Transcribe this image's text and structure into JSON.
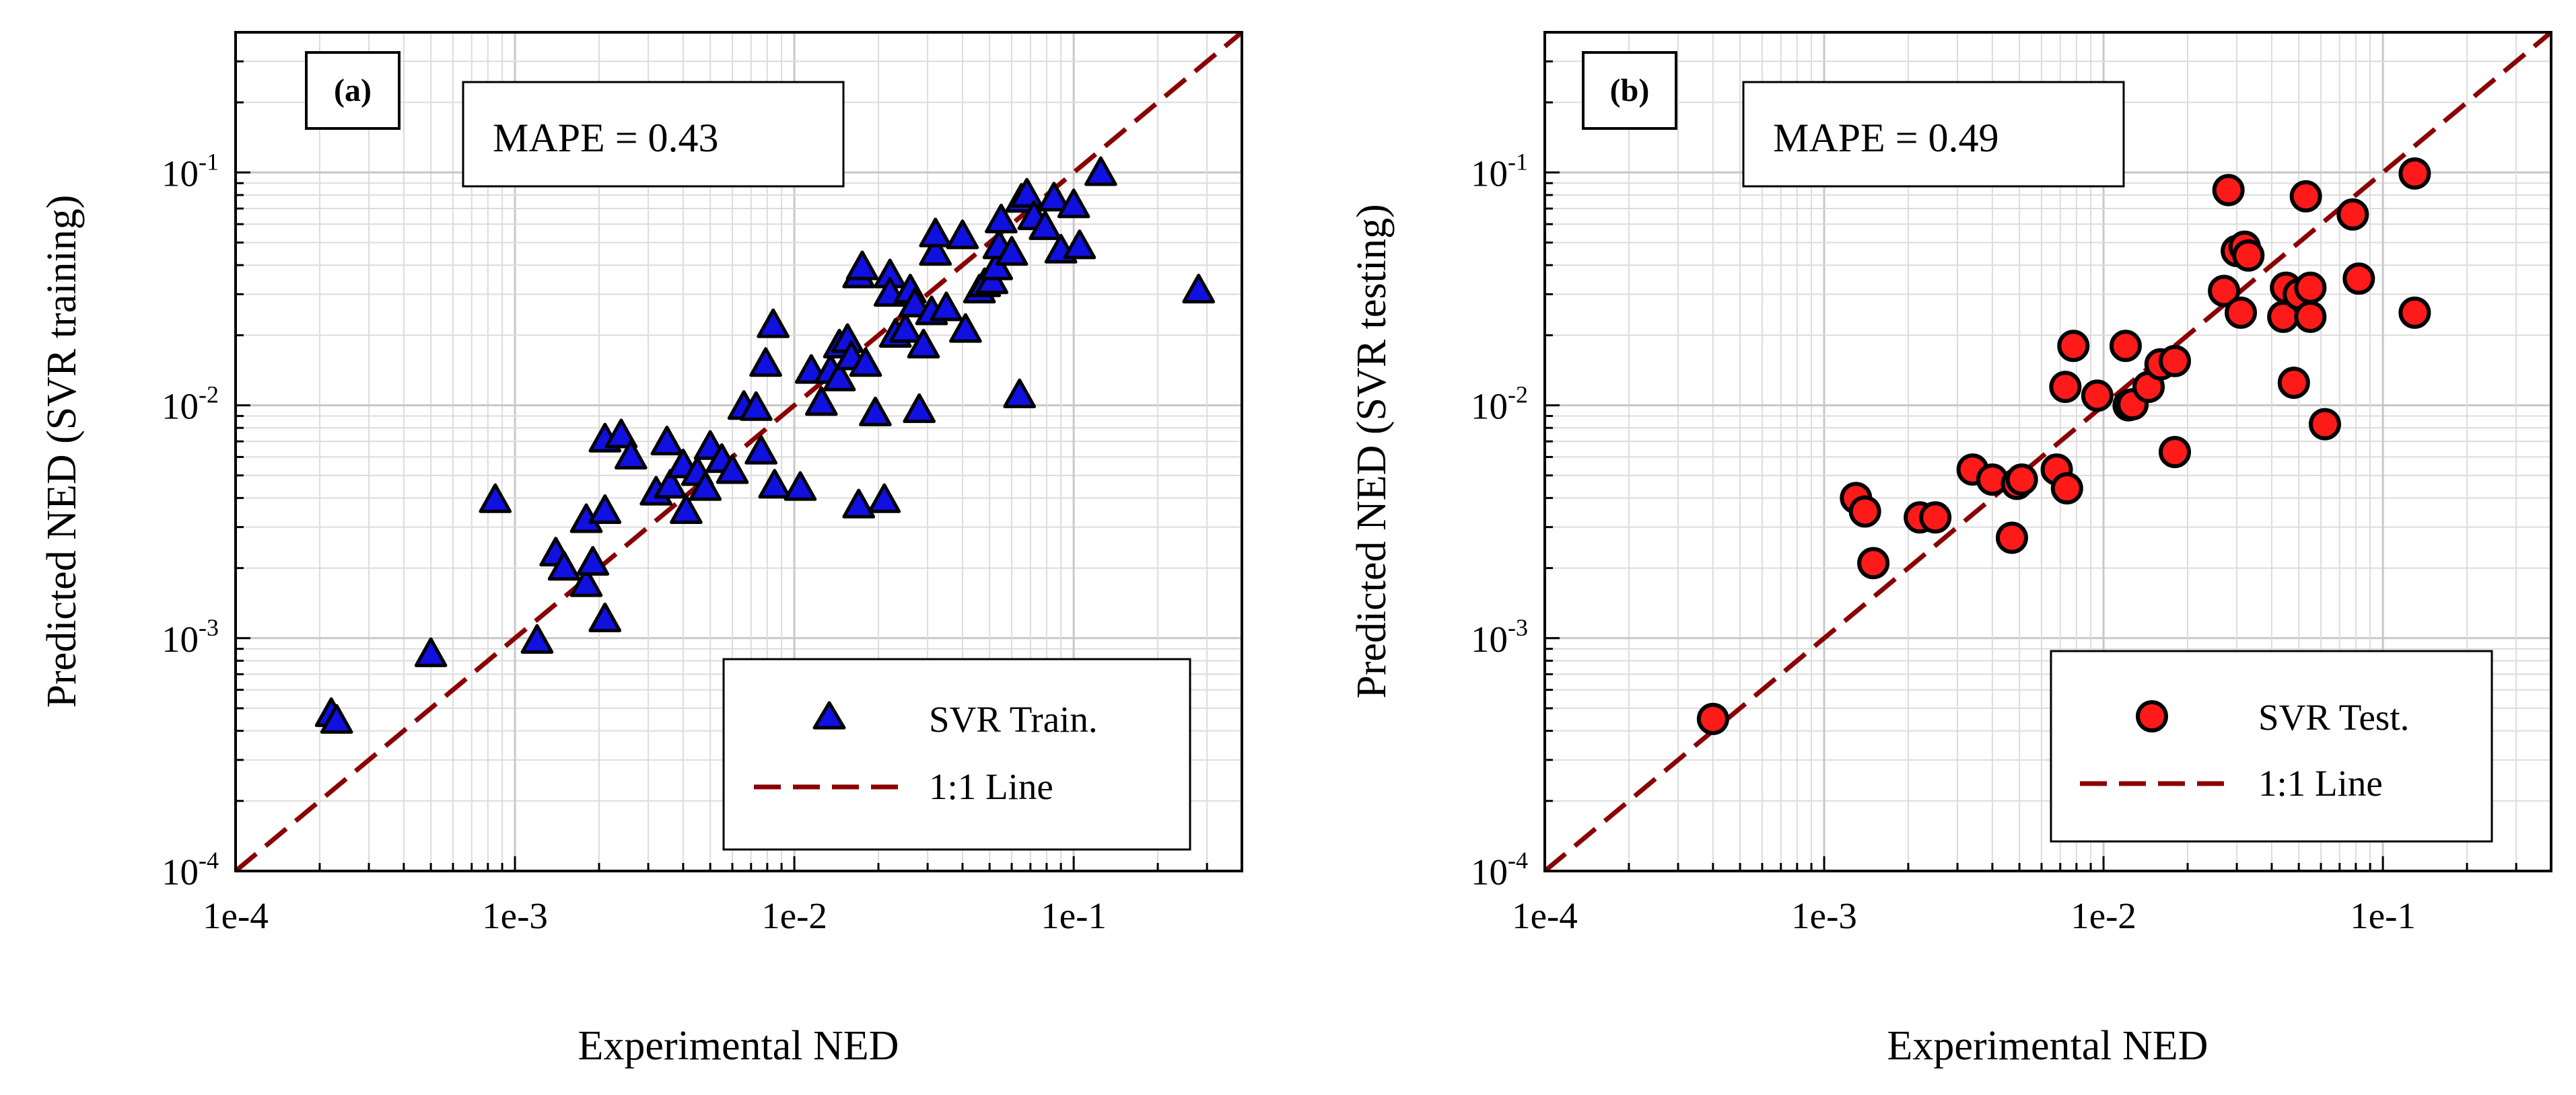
{
  "chart_data": [
    {
      "type": "scatter",
      "panel_label": "(a)",
      "metric_label": "MAPE = 0.43",
      "xlabel": "Experimental NED",
      "ylabel": "Predicted NED (SVR training)",
      "x_scale": "log",
      "y_scale": "log",
      "xlim": [
        0.0001,
        0.4
      ],
      "ylim": [
        0.0001,
        0.4
      ],
      "x_ticks": [
        {
          "value": 0.0001,
          "label": "1e-4"
        },
        {
          "value": 0.001,
          "label": "1e-3"
        },
        {
          "value": 0.01,
          "label": "1e-2"
        },
        {
          "value": 0.1,
          "label": "1e-1"
        }
      ],
      "y_ticks": [
        {
          "value": 0.0001,
          "base": "10",
          "exp": "-4"
        },
        {
          "value": 0.001,
          "base": "10",
          "exp": "-3"
        },
        {
          "value": 0.01,
          "base": "10",
          "exp": "-2"
        },
        {
          "value": 0.1,
          "base": "10",
          "exp": "-1"
        }
      ],
      "grid": true,
      "legend_position": "bottom-right",
      "legend": [
        {
          "label": "SVR Train.",
          "marker": "triangle"
        },
        {
          "label": "1:1 Line",
          "marker": "dashed-line"
        }
      ],
      "colors": {
        "marker_fill": "#1010e0",
        "marker_edge": "#000000",
        "ref_line": "#8b0000"
      },
      "series": [
        {
          "name": "SVR Train.",
          "marker": "triangle",
          "points": [
            [
              0.00022,
              0.00047
            ],
            [
              0.00023,
              0.00044
            ],
            [
              0.0005,
              0.00085
            ],
            [
              0.00085,
              0.0039
            ],
            [
              0.0012,
              0.00097
            ],
            [
              0.0014,
              0.0023
            ],
            [
              0.0015,
              0.002
            ],
            [
              0.0018,
              0.0017
            ],
            [
              0.0018,
              0.0032
            ],
            [
              0.0019,
              0.0021
            ],
            [
              0.0021,
              0.0035
            ],
            [
              0.0021,
              0.0012
            ],
            [
              0.0021,
              0.0071
            ],
            [
              0.0024,
              0.0074
            ],
            [
              0.0026,
              0.006
            ],
            [
              0.0032,
              0.0042
            ],
            [
              0.0035,
              0.0069
            ],
            [
              0.0036,
              0.0045
            ],
            [
              0.004,
              0.0055
            ],
            [
              0.0041,
              0.0035
            ],
            [
              0.0045,
              0.0051
            ],
            [
              0.0048,
              0.0044
            ],
            [
              0.005,
              0.0066
            ],
            [
              0.0055,
              0.0058
            ],
            [
              0.006,
              0.0052
            ],
            [
              0.0066,
              0.0098
            ],
            [
              0.0073,
              0.0097
            ],
            [
              0.0076,
              0.0063
            ],
            [
              0.0079,
              0.015
            ],
            [
              0.0084,
              0.022
            ],
            [
              0.0085,
              0.0045
            ],
            [
              0.0105,
              0.0044
            ],
            [
              0.0115,
              0.014
            ],
            [
              0.0125,
              0.0102
            ],
            [
              0.0135,
              0.014
            ],
            [
              0.0145,
              0.018
            ],
            [
              0.0145,
              0.013
            ],
            [
              0.0155,
              0.019
            ],
            [
              0.016,
              0.016
            ],
            [
              0.017,
              0.0037
            ],
            [
              0.017,
              0.036
            ],
            [
              0.0175,
              0.039
            ],
            [
              0.018,
              0.015
            ],
            [
              0.0195,
              0.0092
            ],
            [
              0.021,
              0.0039
            ],
            [
              0.022,
              0.036
            ],
            [
              0.022,
              0.03
            ],
            [
              0.023,
              0.02
            ],
            [
              0.025,
              0.021
            ],
            [
              0.026,
              0.031
            ],
            [
              0.027,
              0.027
            ],
            [
              0.028,
              0.0095
            ],
            [
              0.029,
              0.018
            ],
            [
              0.031,
              0.025
            ],
            [
              0.032,
              0.045
            ],
            [
              0.032,
              0.054
            ],
            [
              0.035,
              0.026
            ],
            [
              0.04,
              0.053
            ],
            [
              0.041,
              0.021
            ],
            [
              0.046,
              0.031
            ],
            [
              0.048,
              0.033
            ],
            [
              0.051,
              0.034
            ],
            [
              0.053,
              0.039
            ],
            [
              0.054,
              0.048
            ],
            [
              0.055,
              0.062
            ],
            [
              0.06,
              0.045
            ],
            [
              0.064,
              0.011
            ],
            [
              0.065,
              0.076
            ],
            [
              0.068,
              0.08
            ],
            [
              0.072,
              0.064
            ],
            [
              0.079,
              0.058
            ],
            [
              0.085,
              0.077
            ],
            [
              0.09,
              0.046
            ],
            [
              0.1,
              0.072
            ],
            [
              0.105,
              0.048
            ],
            [
              0.125,
              0.099
            ],
            [
              0.28,
              0.031
            ]
          ]
        },
        {
          "name": "1:1 Line",
          "type": "line",
          "style": "dashed",
          "x": [
            0.0001,
            0.4
          ],
          "y": [
            0.0001,
            0.4
          ]
        }
      ]
    },
    {
      "type": "scatter",
      "panel_label": "(b)",
      "metric_label": "MAPE = 0.49",
      "xlabel": "Experimental NED",
      "ylabel": "Predicted NED (SVR testing)",
      "x_scale": "log",
      "y_scale": "log",
      "xlim": [
        0.0001,
        0.4
      ],
      "ylim": [
        0.0001,
        0.4
      ],
      "x_ticks": [
        {
          "value": 0.0001,
          "label": "1e-4"
        },
        {
          "value": 0.001,
          "label": "1e-3"
        },
        {
          "value": 0.01,
          "label": "1e-2"
        },
        {
          "value": 0.1,
          "label": "1e-1"
        }
      ],
      "y_ticks": [
        {
          "value": 0.0001,
          "base": "10",
          "exp": "-4"
        },
        {
          "value": 0.001,
          "base": "10",
          "exp": "-3"
        },
        {
          "value": 0.01,
          "base": "10",
          "exp": "-2"
        },
        {
          "value": 0.1,
          "base": "10",
          "exp": "-1"
        }
      ],
      "grid": true,
      "legend_position": "bottom-right",
      "legend": [
        {
          "label": "SVR Test.",
          "marker": "circle"
        },
        {
          "label": "1:1 Line",
          "marker": "dashed-line"
        }
      ],
      "colors": {
        "marker_fill": "#ff1a1a",
        "marker_edge": "#000000",
        "ref_line": "#8b0000"
      },
      "series": [
        {
          "name": "SVR Test.",
          "marker": "circle",
          "points": [
            [
              0.0004,
              0.00045
            ],
            [
              0.0013,
              0.004
            ],
            [
              0.0014,
              0.0035
            ],
            [
              0.0015,
              0.0021
            ],
            [
              0.0022,
              0.0033
            ],
            [
              0.0025,
              0.0033
            ],
            [
              0.0034,
              0.0053
            ],
            [
              0.004,
              0.0048
            ],
            [
              0.0047,
              0.0027
            ],
            [
              0.0049,
              0.0046
            ],
            [
              0.0051,
              0.0048
            ],
            [
              0.0068,
              0.0053
            ],
            [
              0.0073,
              0.012
            ],
            [
              0.0074,
              0.0044
            ],
            [
              0.0078,
              0.018
            ],
            [
              0.0095,
              0.011
            ],
            [
              0.012,
              0.018
            ],
            [
              0.0123,
              0.01
            ],
            [
              0.0127,
              0.0101
            ],
            [
              0.0145,
              0.012
            ],
            [
              0.016,
              0.015
            ],
            [
              0.018,
              0.0063
            ],
            [
              0.018,
              0.0155
            ],
            [
              0.027,
              0.031
            ],
            [
              0.028,
              0.084
            ],
            [
              0.03,
              0.046
            ],
            [
              0.031,
              0.025
            ],
            [
              0.032,
              0.048
            ],
            [
              0.033,
              0.044
            ],
            [
              0.044,
              0.024
            ],
            [
              0.045,
              0.032
            ],
            [
              0.048,
              0.0125
            ],
            [
              0.05,
              0.03
            ],
            [
              0.053,
              0.079
            ],
            [
              0.055,
              0.024
            ],
            [
              0.055,
              0.032
            ],
            [
              0.062,
              0.0083
            ],
            [
              0.078,
              0.066
            ],
            [
              0.082,
              0.035
            ],
            [
              0.13,
              0.099
            ],
            [
              0.13,
              0.025
            ]
          ]
        },
        {
          "name": "1:1 Line",
          "type": "line",
          "style": "dashed",
          "x": [
            0.0001,
            0.4
          ],
          "y": [
            0.0001,
            0.4
          ]
        }
      ]
    }
  ]
}
